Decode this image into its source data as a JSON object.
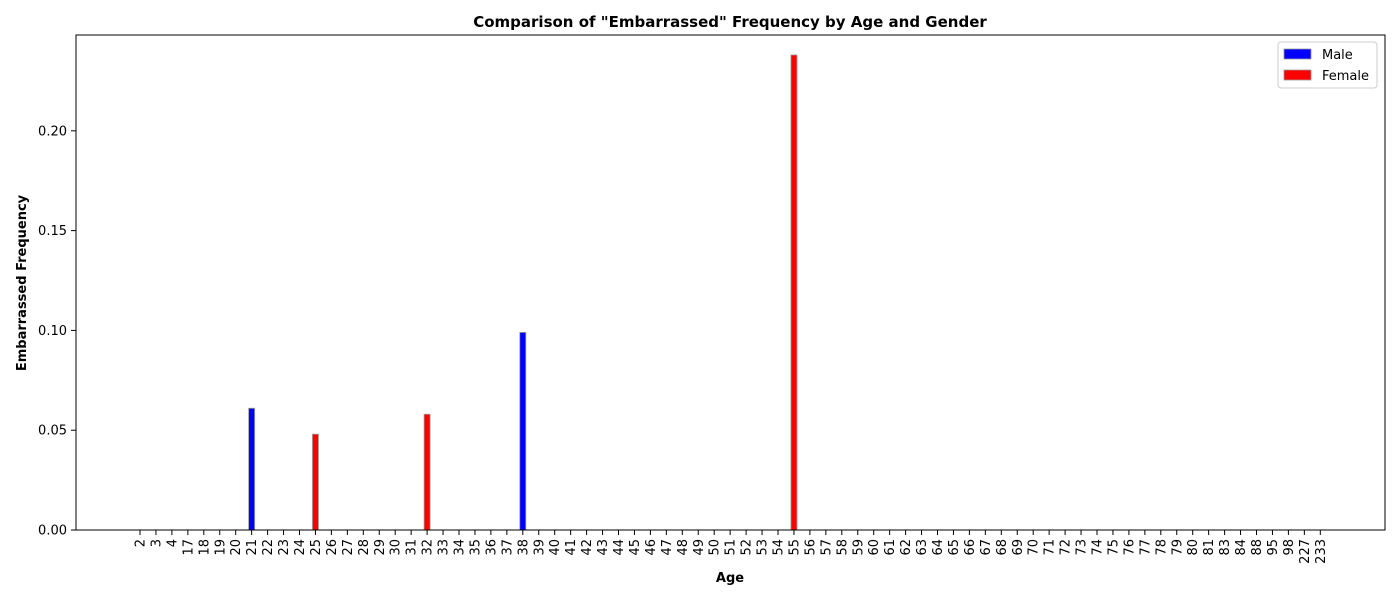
{
  "chart_data": {
    "type": "bar",
    "title": "Comparison of \"Embarrassed\" Frequency by Age and Gender",
    "xlabel": "Age",
    "ylabel": "Embarrassed Frequency",
    "ylim": [
      0,
      0.248
    ],
    "yticks": [
      "0.00",
      "0.05",
      "0.10",
      "0.15",
      "0.20"
    ],
    "grid": false,
    "legend_position": "top-right",
    "categories": [
      "2",
      "3",
      "4",
      "17",
      "18",
      "19",
      "20",
      "21",
      "22",
      "23",
      "24",
      "25",
      "26",
      "27",
      "28",
      "29",
      "30",
      "31",
      "32",
      "33",
      "34",
      "35",
      "36",
      "37",
      "38",
      "39",
      "40",
      "41",
      "42",
      "43",
      "44",
      "45",
      "46",
      "47",
      "48",
      "49",
      "50",
      "51",
      "52",
      "53",
      "54",
      "55",
      "56",
      "57",
      "58",
      "59",
      "60",
      "61",
      "62",
      "63",
      "64",
      "65",
      "66",
      "67",
      "68",
      "69",
      "70",
      "71",
      "72",
      "73",
      "74",
      "75",
      "76",
      "77",
      "78",
      "79",
      "80",
      "81",
      "83",
      "84",
      "88",
      "95",
      "98",
      "227",
      "233"
    ],
    "series": [
      {
        "name": "Male",
        "color": "#0000ff",
        "values": [
          0,
          0,
          0,
          0,
          0,
          0,
          0,
          0.061,
          0,
          0,
          0,
          0,
          0,
          0,
          0,
          0,
          0,
          0,
          0,
          0,
          0,
          0,
          0,
          0,
          0.099,
          0,
          0,
          0,
          0,
          0,
          0,
          0,
          0,
          0,
          0,
          0,
          0,
          0,
          0,
          0,
          0,
          0,
          0,
          0,
          0,
          0,
          0,
          0,
          0,
          0,
          0,
          0,
          0,
          0,
          0,
          0,
          0,
          0,
          0,
          0,
          0,
          0,
          0,
          0,
          0,
          0,
          0,
          0,
          0,
          0,
          0,
          0,
          0,
          0,
          0
        ]
      },
      {
        "name": "Female",
        "color": "#ff0000",
        "values": [
          0,
          0,
          0,
          0,
          0,
          0,
          0,
          0,
          0,
          0,
          0,
          0.048,
          0,
          0,
          0,
          0,
          0,
          0,
          0.058,
          0,
          0,
          0,
          0,
          0,
          0,
          0,
          0,
          0,
          0,
          0,
          0,
          0,
          0,
          0,
          0,
          0,
          0,
          0,
          0,
          0,
          0,
          0.238,
          0,
          0,
          0,
          0,
          0,
          0,
          0,
          0,
          0,
          0,
          0,
          0,
          0,
          0,
          0,
          0,
          0,
          0,
          0,
          0,
          0,
          0,
          0,
          0,
          0,
          0,
          0,
          0,
          0,
          0,
          0,
          0,
          0
        ]
      }
    ]
  }
}
